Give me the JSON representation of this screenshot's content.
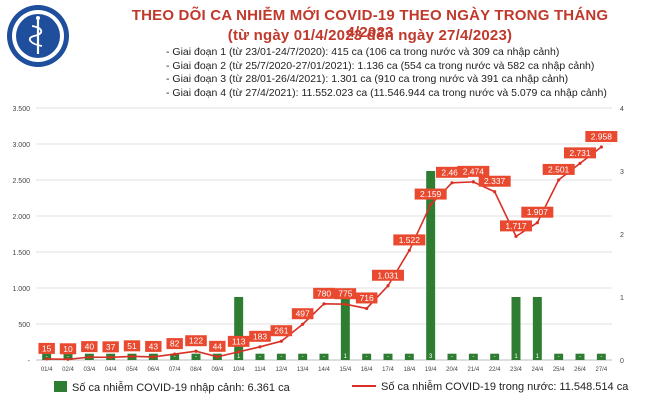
{
  "header": {
    "title_line1": "THEO DÕI CA NHIỄM MỚI COVID-19 THEO NGÀY TRONG THÁNG 4/2023",
    "title_line2": "(từ ngày 01/4/2023 đến ngày 27/4/2023)",
    "logo_text_top": "BỘ Y TẾ",
    "logo_text_bottom": "MINISTRY OF HEALTH"
  },
  "stages": [
    "- Giai đoạn 1 (từ 23/01-24/7/2020): 415 ca (106 ca trong nước và 309 ca nhập cảnh)",
    "- Giai đoạn 2 (từ 25/7/2020-27/01/2021): 1.136 ca (554 ca trong nước và 582 ca nhập cảnh)",
    "- Giai đoạn 3 (từ 28/01-26/4/2021): 1.301 ca (910 ca trong nước và 391 ca nhập cảnh)",
    "- Giai đoạn 4 (từ 27/4/2021): 11.552.023 ca (11.546.944 ca trong nước và 5.079 ca nhập cảnh)"
  ],
  "legend": {
    "bar_label": "Số ca nhiễm COVID-19 nhập cảnh: 6.361 ca",
    "line_label": "Số ca nhiễm COVID-19 trong nước: 11.548.514 ca"
  },
  "colors": {
    "title": "#c0392b",
    "bar": "#2e7d32",
    "line": "#d93025",
    "label_bg": "#e8492f"
  },
  "chart_data": {
    "type": "bar+line",
    "categories": [
      "01/4",
      "02/4",
      "03/4",
      "04/4",
      "05/4",
      "06/4",
      "07/4",
      "08/4",
      "09/4",
      "10/4",
      "11/4",
      "12/4",
      "13/4",
      "14/4",
      "15/4",
      "16/4",
      "17/4",
      "18/4",
      "19/4",
      "20/4",
      "21/4",
      "22/4",
      "23/4",
      "24/4",
      "25/4",
      "26/4",
      "27/4"
    ],
    "series": [
      {
        "name": "Số ca nhiễm COVID-19 nhập cảnh",
        "type": "bar",
        "axis": "right",
        "values": [
          0,
          0,
          0,
          0,
          0,
          0,
          0,
          0,
          0,
          1,
          0,
          0,
          0,
          0,
          1,
          0,
          0,
          0,
          3,
          0,
          0,
          0,
          1,
          1,
          0,
          0,
          0
        ]
      },
      {
        "name": "Số ca nhiễm COVID-19 trong nước",
        "type": "line",
        "axis": "left",
        "values": [
          15,
          10,
          40,
          37,
          51,
          43,
          82,
          122,
          44,
          113,
          183,
          261,
          497,
          780,
          775,
          716,
          1031,
          1522,
          2159,
          2461,
          2474,
          2337,
          1717,
          1907,
          2501,
          2731,
          2958
        ],
        "labels": [
          "15",
          "10",
          "40",
          "37",
          "51",
          "43",
          "82",
          "122",
          "44",
          "113",
          "183",
          "261",
          "497",
          "780",
          "775",
          "716",
          "1.031",
          "1.522",
          "2.159",
          "2.461",
          "2.474",
          "2.337",
          "1.717",
          "1.907",
          "2.501",
          "2.731",
          "2.958"
        ]
      }
    ],
    "ylim_left": [
      0,
      3500
    ],
    "yticks_left": [
      "-",
      "500",
      "1.000",
      "1.500",
      "2.000",
      "2.500",
      "3.000",
      "3.500"
    ],
    "ylim_right": [
      0,
      4
    ],
    "yticks_right": [
      "0",
      "1",
      "2",
      "3",
      "4"
    ],
    "grid": true
  }
}
